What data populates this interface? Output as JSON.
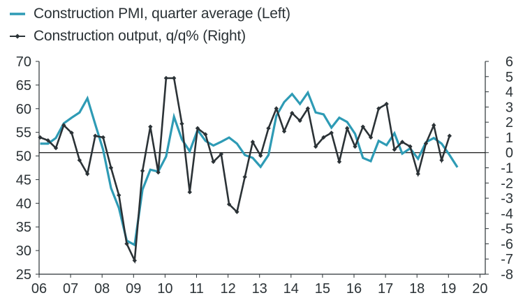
{
  "chart_data": {
    "type": "line",
    "title": "",
    "legend": {
      "position": "top-left",
      "entries": [
        {
          "label": "Construction PMI, quarter average (Left)",
          "series": "pmi",
          "marker": "line"
        },
        {
          "label": "Construction output, q/q% (Right)",
          "series": "output",
          "marker": "line-diamond"
        }
      ]
    },
    "x": {
      "label": "",
      "tick_labels": [
        "06",
        "07",
        "08",
        "09",
        "10",
        "11",
        "12",
        "13",
        "14",
        "15",
        "16",
        "17",
        "18",
        "19",
        "20"
      ],
      "start": "2006Q1",
      "range": [
        "2006",
        "2020"
      ],
      "unit": "quarter"
    },
    "y_left": {
      "label": "",
      "range": [
        25,
        70
      ],
      "ticks": [
        70,
        65,
        60,
        55,
        50,
        45,
        40,
        35,
        30,
        25
      ]
    },
    "y_right": {
      "label": "",
      "range": [
        -8,
        6
      ],
      "ticks": [
        6,
        5,
        4,
        3,
        2,
        1,
        0,
        -1,
        -2,
        -3,
        -4,
        -5,
        -6,
        -7,
        -8
      ],
      "reference_line": 0
    },
    "grid": false,
    "series": [
      {
        "name": "Construction PMI, quarter average (Left)",
        "id": "pmi",
        "axis": "left",
        "color": "#2e9bb5",
        "values": [
          52.6,
          52.6,
          53.8,
          56.9,
          58.1,
          59.2,
          62.2,
          56.7,
          51.3,
          43.2,
          39.0,
          32.1,
          31.2,
          42.9,
          47.1,
          46.7,
          49.9,
          58.3,
          53.5,
          51.0,
          55.5,
          53.2,
          52.2,
          53.0,
          53.9,
          52.6,
          50.2,
          49.6,
          47.7,
          50.2,
          58.5,
          61.4,
          63.1,
          61.0,
          63.4,
          59.2,
          58.8,
          56.0,
          58.1,
          57.2,
          54.7,
          49.6,
          48.9,
          53.2,
          52.3,
          54.8,
          50.5,
          51.6,
          49.4,
          52.9,
          53.8,
          52.6,
          50.2,
          47.6
        ]
      },
      {
        "name": "Construction output, q/q% (Right)",
        "id": "output",
        "axis": "right",
        "color": "#2b3236",
        "values": [
          1.0,
          0.8,
          0.3,
          1.8,
          1.3,
          -0.5,
          -1.4,
          1.1,
          1.0,
          -1.0,
          -2.8,
          -6.0,
          -7.1,
          -1.2,
          1.7,
          -1.3,
          4.9,
          4.9,
          1.9,
          -2.6,
          1.6,
          1.2,
          -0.6,
          -0.1,
          -3.4,
          -3.9,
          -1.6,
          0.7,
          -0.2,
          1.6,
          2.9,
          1.4,
          2.6,
          2.1,
          2.9,
          0.4,
          1.0,
          1.3,
          -0.6,
          1.6,
          0.4,
          1.7,
          1.0,
          2.9,
          3.2,
          0.2,
          0.7,
          0.4,
          -1.4,
          0.6,
          1.8,
          -0.5,
          1.1
        ]
      }
    ]
  },
  "colors": {
    "pmi": "#2e9bb5",
    "output": "#2b3236",
    "axis": "#2b3236",
    "text": "#2b3236"
  }
}
